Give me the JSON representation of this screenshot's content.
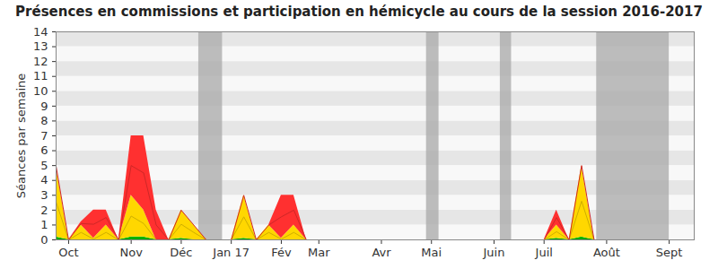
{
  "chart_data": {
    "type": "area",
    "title": "Présences en commissions et participation en hémicycle au cours de la session 2016-2017",
    "y_label": "Séances par semaine",
    "categories": [
      null,
      "Oct",
      null,
      null,
      null,
      null,
      "Nov",
      null,
      null,
      null,
      "Déc",
      null,
      null,
      null,
      "Jan 17",
      null,
      null,
      null,
      "Fév",
      null,
      null,
      "Mar",
      null,
      null,
      null,
      null,
      "Avr",
      null,
      null,
      null,
      "Mai",
      null,
      null,
      null,
      null,
      "Juin",
      null,
      null,
      null,
      "Juil",
      null,
      null,
      null,
      null,
      "Août",
      null,
      null,
      null,
      null,
      "Sept",
      null,
      null
    ],
    "series": [
      {
        "color": "#00c000",
        "values": [
          0.2,
          0,
          0,
          0,
          0,
          0,
          0.2,
          0.2,
          0,
          0,
          0.1,
          0,
          0,
          0,
          0,
          0.1,
          0,
          0,
          0,
          0,
          0,
          0,
          0,
          0,
          0,
          0,
          0,
          0,
          0,
          0,
          0,
          0,
          0,
          0,
          0,
          0,
          0,
          0,
          0,
          0,
          0.1,
          0,
          0.2,
          0,
          null,
          null,
          null,
          null,
          null,
          null,
          null,
          null
        ]
      },
      {
        "color": "#ffd700",
        "values": [
          4.7,
          0,
          1,
          0.1,
          1,
          0,
          2.8,
          1.8,
          0,
          0,
          1.9,
          1,
          0,
          0,
          0,
          2.9,
          0,
          1,
          0.1,
          1,
          0,
          0,
          0,
          0,
          0,
          0,
          0,
          0,
          0,
          0,
          0,
          0,
          0,
          0,
          0,
          0,
          0,
          0,
          0,
          0,
          0.9,
          0,
          4.8,
          0,
          null,
          null,
          null,
          null,
          null,
          null,
          null,
          null
        ]
      },
      {
        "color": "#ff3030",
        "values": [
          0.1,
          0,
          0.2,
          1.9,
          1,
          0,
          4,
          5,
          2,
          0,
          0,
          0,
          0,
          0,
          0,
          0,
          0,
          0,
          2.9,
          2,
          0,
          0,
          0,
          0,
          0,
          0,
          0,
          0,
          0,
          0,
          0,
          0,
          0,
          0,
          0,
          0,
          0,
          0,
          0,
          0,
          1,
          0,
          0,
          0,
          null,
          null,
          null,
          null,
          null,
          null,
          null,
          null
        ]
      }
    ],
    "bands": [
      [
        11.4,
        13.3
      ],
      [
        29.6,
        30.6
      ],
      [
        35.5,
        36.4
      ],
      [
        43.2,
        49
      ]
    ],
    "stacked": true,
    "xlim": [
      0,
      51
    ],
    "ylim": [
      0,
      14
    ],
    "yticks": [
      0,
      1,
      2,
      3,
      4,
      5,
      6,
      7,
      8,
      9,
      10,
      11,
      12,
      13,
      14
    ],
    "grid": true
  }
}
